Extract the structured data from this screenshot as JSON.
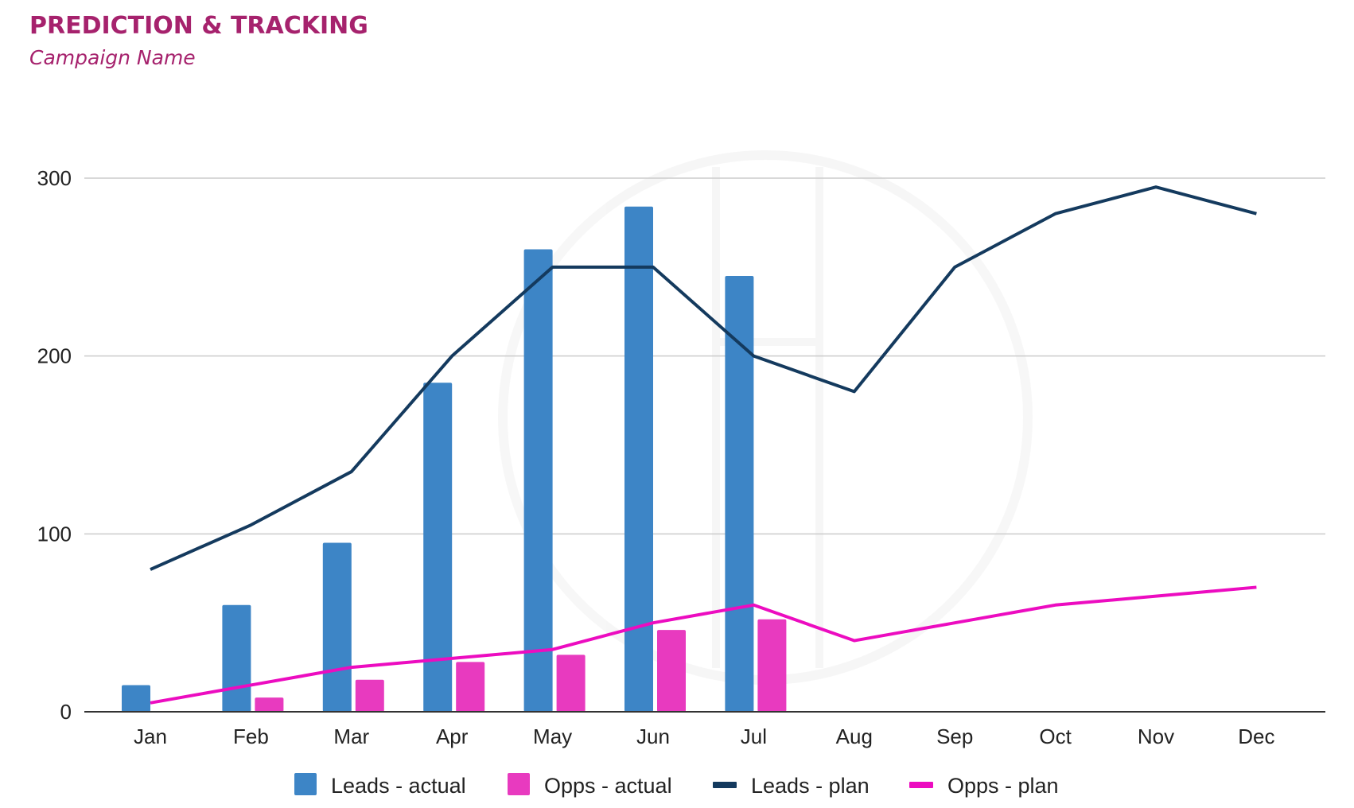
{
  "header": {
    "title": "PREDICTION & TRACKING",
    "subtitle": "Campaign Name"
  },
  "chart_data": {
    "type": "bar",
    "title": "PREDICTION & TRACKING",
    "subtitle": "Campaign Name",
    "xlabel": "",
    "ylabel": "",
    "categories": [
      "Jan",
      "Feb",
      "Mar",
      "Apr",
      "May",
      "Jun",
      "Jul",
      "Aug",
      "Sep",
      "Oct",
      "Nov",
      "Dec"
    ],
    "ylim": [
      0,
      300
    ],
    "yticks": [
      0,
      100,
      200,
      300
    ],
    "grid": true,
    "legend_position": "bottom",
    "series": [
      {
        "name": "Leads - actual",
        "kind": "bar",
        "color": "#3d85c6",
        "values": [
          15,
          60,
          95,
          185,
          260,
          284,
          245,
          null,
          null,
          null,
          null,
          null
        ]
      },
      {
        "name": "Opps - actual",
        "kind": "bar",
        "color": "#e83abf",
        "values": [
          null,
          8,
          18,
          28,
          32,
          46,
          52,
          null,
          null,
          null,
          null,
          null
        ]
      },
      {
        "name": "Leads - plan",
        "kind": "line",
        "color": "#143a5e",
        "values": [
          80,
          105,
          135,
          200,
          250,
          250,
          200,
          180,
          250,
          280,
          295,
          280
        ]
      },
      {
        "name": "Opps - plan",
        "kind": "line",
        "color": "#ec0cc0",
        "values": [
          5,
          15,
          25,
          30,
          35,
          50,
          60,
          40,
          50,
          60,
          65,
          70
        ]
      }
    ]
  }
}
